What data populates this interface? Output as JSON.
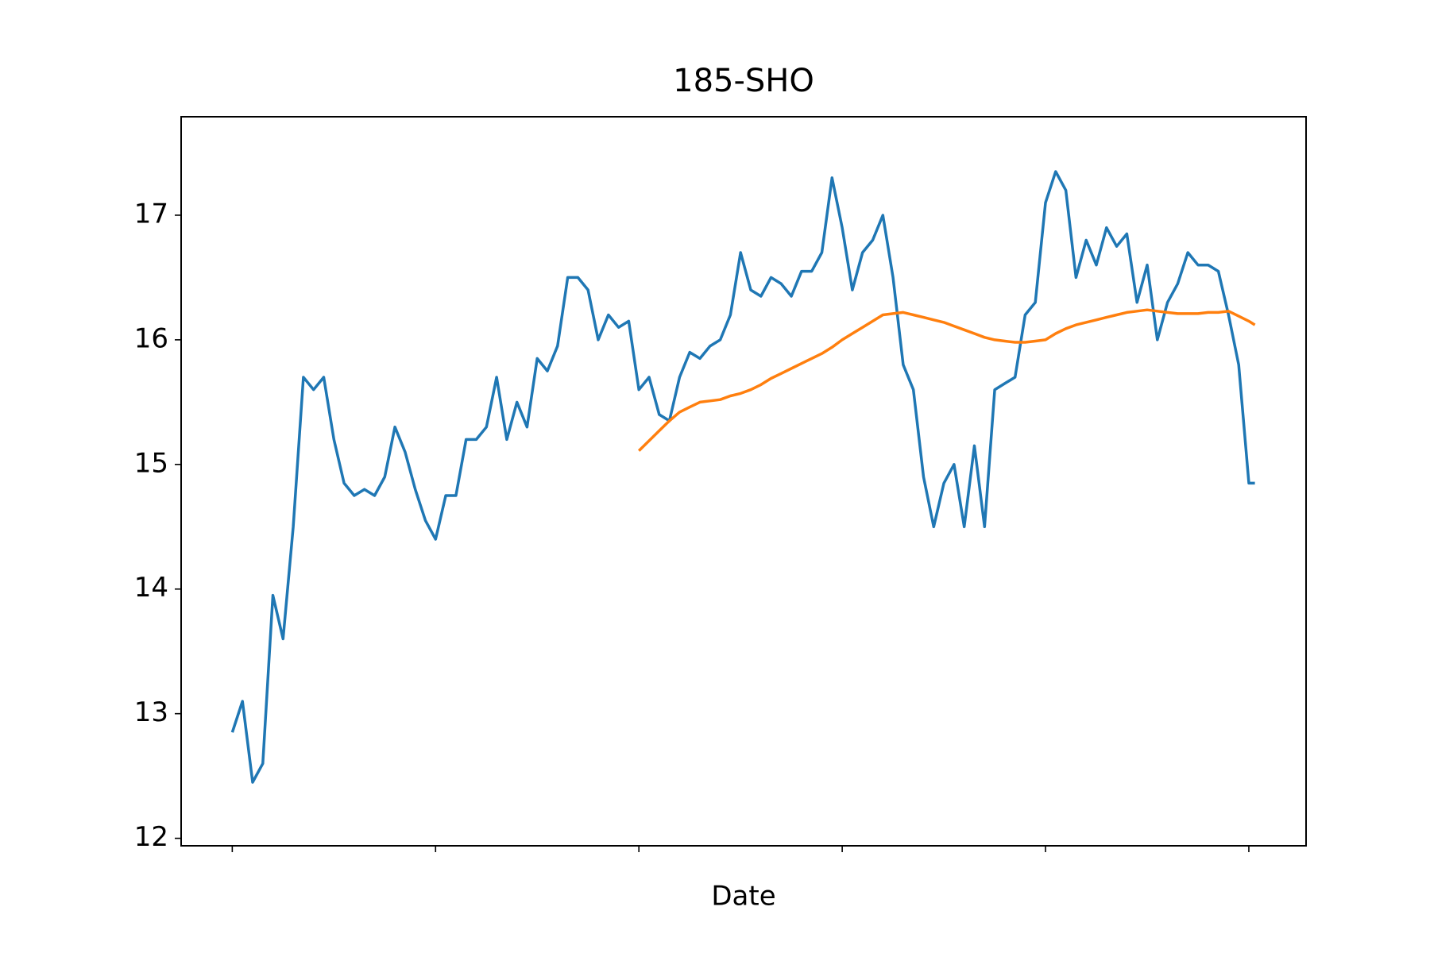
{
  "chart_data": {
    "type": "line",
    "title": "185-SHO",
    "x_label": "Date",
    "x": [
      0,
      5,
      10,
      15,
      20,
      25,
      30,
      35,
      40,
      45,
      50,
      55,
      60,
      65,
      70,
      75,
      80,
      85,
      90,
      95,
      100,
      105,
      110,
      115,
      120,
      125,
      130,
      135,
      140,
      145,
      150,
      155,
      160,
      165,
      170,
      175,
      180,
      185,
      190,
      195,
      200,
      205,
      210,
      215,
      220,
      225,
      230,
      235,
      240,
      245,
      250,
      255,
      260,
      265,
      270,
      275,
      280,
      285,
      290,
      295,
      300,
      305,
      310,
      315,
      320,
      325,
      330,
      335,
      340,
      345,
      350,
      355,
      360,
      365,
      370,
      375,
      380,
      385,
      390,
      395,
      400,
      405,
      410,
      415,
      420,
      425,
      430,
      435,
      440,
      445,
      450,
      455,
      460,
      465,
      470,
      475,
      480,
      485,
      490,
      495,
      500,
      503
    ],
    "series": [
      {
        "color": "#1f77b4",
        "values": [
          12.85,
          13.1,
          12.45,
          12.6,
          13.95,
          13.6,
          14.5,
          15.7,
          15.6,
          15.7,
          15.2,
          14.85,
          14.75,
          14.8,
          14.75,
          14.9,
          15.3,
          15.1,
          14.8,
          14.55,
          14.4,
          14.75,
          14.75,
          15.2,
          15.2,
          15.3,
          15.7,
          15.2,
          15.5,
          15.3,
          15.85,
          15.75,
          15.95,
          16.5,
          16.5,
          16.4,
          16.0,
          16.2,
          16.1,
          16.15,
          15.6,
          15.7,
          15.4,
          15.35,
          15.7,
          15.9,
          15.85,
          15.95,
          16.0,
          16.2,
          16.7,
          16.4,
          16.35,
          16.5,
          16.45,
          16.35,
          16.55,
          16.55,
          16.7,
          17.3,
          16.9,
          16.4,
          16.7,
          16.8,
          17.0,
          16.5,
          15.8,
          15.6,
          14.9,
          14.5,
          14.85,
          15.0,
          14.5,
          15.15,
          14.5,
          15.6,
          15.65,
          15.7,
          16.2,
          16.3,
          17.1,
          17.35,
          17.2,
          16.5,
          16.8,
          16.6,
          16.9,
          16.75,
          16.85,
          16.3,
          16.6,
          16.0,
          16.3,
          16.45,
          16.7,
          16.6,
          16.6,
          16.55,
          16.2,
          15.8,
          14.85,
          14.85
        ]
      },
      {
        "color": "#ff7f0e",
        "values": [
          null,
          null,
          null,
          null,
          null,
          null,
          null,
          null,
          null,
          null,
          null,
          null,
          null,
          null,
          null,
          null,
          null,
          null,
          null,
          null,
          null,
          null,
          null,
          null,
          null,
          null,
          null,
          null,
          null,
          null,
          null,
          null,
          null,
          null,
          null,
          null,
          null,
          null,
          null,
          null,
          15.11,
          15.19,
          15.27,
          15.35,
          15.42,
          15.46,
          15.5,
          15.51,
          15.52,
          15.55,
          15.57,
          15.6,
          15.64,
          15.69,
          15.73,
          15.77,
          15.81,
          15.85,
          15.89,
          15.94,
          16.0,
          16.05,
          16.1,
          16.15,
          16.2,
          16.21,
          16.22,
          16.2,
          16.18,
          16.16,
          16.14,
          16.11,
          16.08,
          16.05,
          16.02,
          16.0,
          15.99,
          15.98,
          15.98,
          15.99,
          16.0,
          16.05,
          16.09,
          16.12,
          16.14,
          16.16,
          16.18,
          16.2,
          16.22,
          16.23,
          16.24,
          16.23,
          16.22,
          16.21,
          16.21,
          16.21,
          16.22,
          16.22,
          16.23,
          16.19,
          16.15,
          16.12
        ]
      }
    ],
    "xlim": [
      -25.15,
      528.15
    ],
    "xticks": [
      0,
      100,
      200,
      300,
      400,
      500
    ],
    "ylim": [
      11.94,
      17.79
    ],
    "yticks": [
      12,
      13,
      14,
      15,
      16,
      17
    ]
  }
}
